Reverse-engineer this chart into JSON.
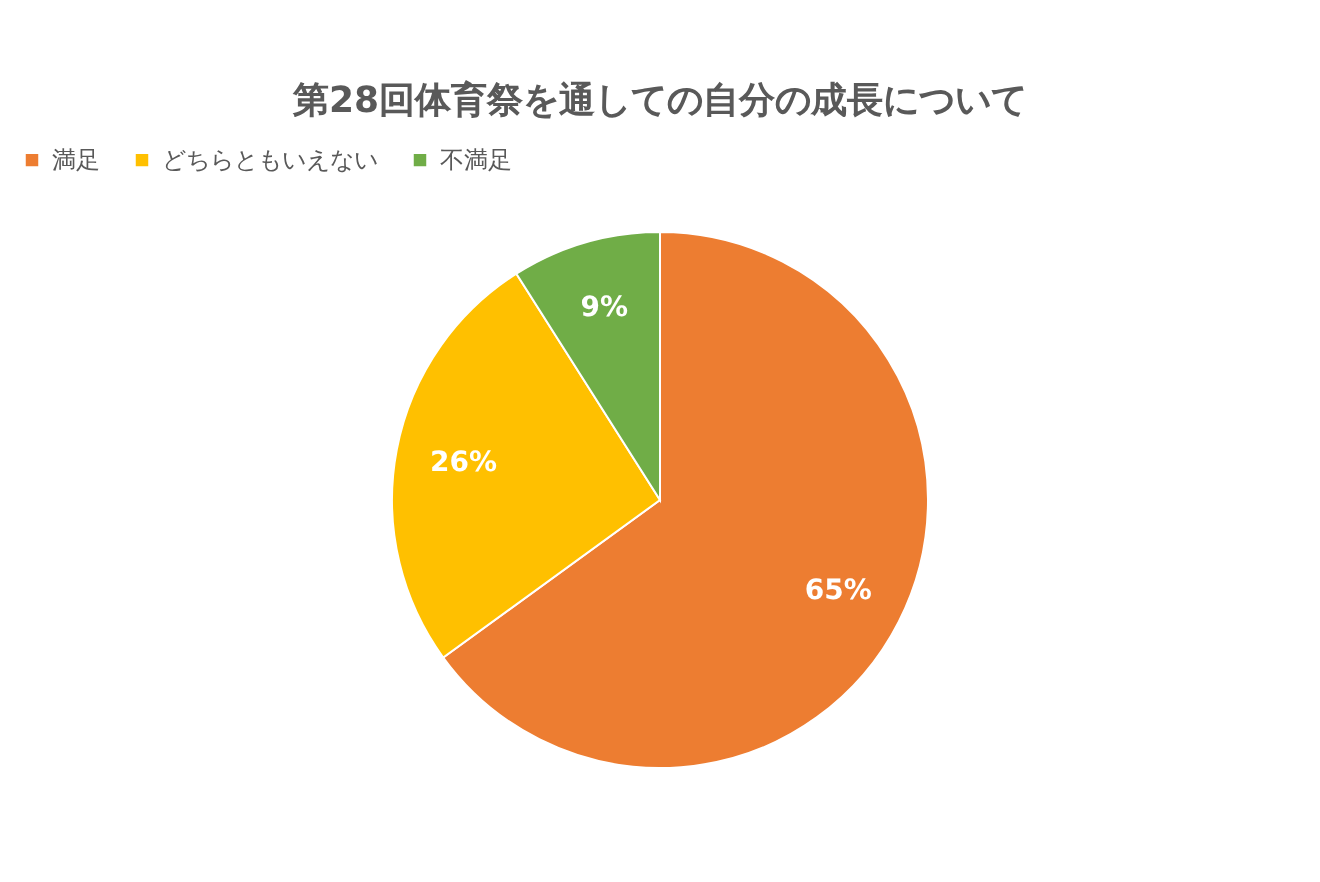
{
  "chart_data": {
    "type": "pie",
    "title": "第28回体育祭を通しての自分の成長について",
    "categories": [
      "満足",
      "どちらともいえない",
      "不満足"
    ],
    "values": [
      65,
      26,
      9
    ],
    "colors": [
      "#ed7d31",
      "#ffc000",
      "#70ad47"
    ],
    "value_labels": [
      "65%",
      "26%",
      "9%"
    ],
    "legend": "top"
  }
}
